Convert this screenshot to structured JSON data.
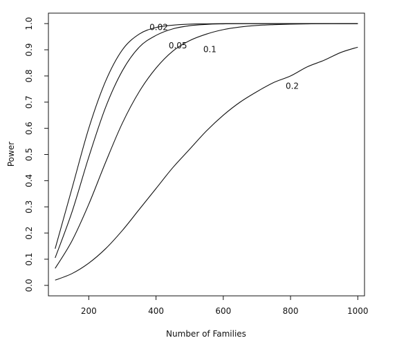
{
  "chart_data": {
    "type": "line",
    "xlabel": "Number of Families",
    "ylabel": "Power",
    "xlim": [
      80,
      1020
    ],
    "ylim": [
      -0.04,
      1.04
    ],
    "x_ticks": [
      200,
      400,
      600,
      800,
      1000
    ],
    "y_ticks": [
      0.0,
      0.1,
      0.2,
      0.3,
      0.4,
      0.5,
      0.6,
      0.7,
      0.8,
      0.9,
      1.0
    ],
    "x_tick_labels": [
      "200",
      "400",
      "600",
      "800",
      "1000"
    ],
    "y_tick_labels": [
      "0.0",
      "0.1",
      "0.2",
      "0.3",
      "0.4",
      "0.5",
      "0.6",
      "0.7",
      "0.8",
      "0.9",
      "1.0"
    ],
    "grid": false,
    "legend": "none",
    "x": [
      100,
      150,
      200,
      250,
      300,
      350,
      400,
      450,
      500,
      550,
      600,
      650,
      700,
      750,
      800,
      850,
      900,
      950,
      1000
    ],
    "series": [
      {
        "name": "0.02",
        "values": [
          0.14,
          0.37,
          0.6,
          0.78,
          0.9,
          0.96,
          0.985,
          0.994,
          0.998,
          0.999,
          1.0,
          1.0,
          1.0,
          1.0,
          1.0,
          1.0,
          1.0,
          1.0,
          1.0
        ],
        "label_at": [
          408,
          0.985
        ]
      },
      {
        "name": "0.05",
        "values": [
          0.105,
          0.28,
          0.49,
          0.68,
          0.82,
          0.91,
          0.955,
          0.98,
          0.992,
          0.997,
          0.999,
          1.0,
          1.0,
          1.0,
          1.0,
          1.0,
          1.0,
          1.0,
          1.0
        ],
        "label_at": [
          465,
          0.915
        ]
      },
      {
        "name": "0.1",
        "values": [
          0.065,
          0.17,
          0.31,
          0.47,
          0.62,
          0.74,
          0.83,
          0.895,
          0.935,
          0.96,
          0.977,
          0.987,
          0.993,
          0.996,
          0.998,
          0.999,
          1.0,
          1.0,
          1.0
        ],
        "label_at": [
          560,
          0.9
        ]
      },
      {
        "name": "0.2",
        "values": [
          0.02,
          0.045,
          0.085,
          0.14,
          0.21,
          0.29,
          0.37,
          0.45,
          0.52,
          0.59,
          0.65,
          0.7,
          0.74,
          0.775,
          0.8,
          0.835,
          0.86,
          0.89,
          0.91
        ],
        "label_at": [
          805,
          0.76
        ]
      }
    ]
  }
}
